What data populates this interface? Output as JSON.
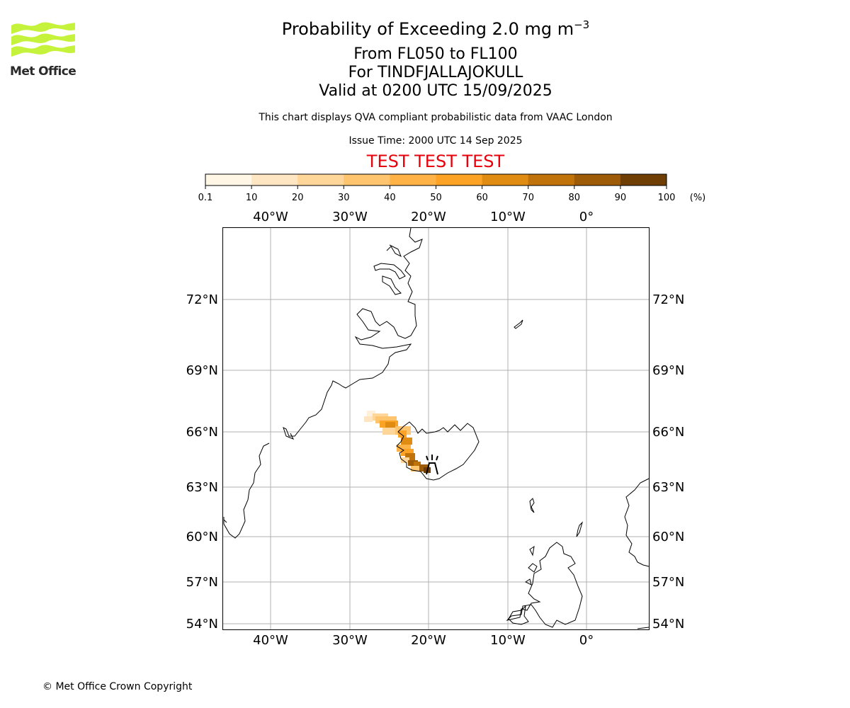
{
  "logo": {
    "name": "Met Office",
    "color": "#c5f23a"
  },
  "header": {
    "title_main": "Probability of Exceeding 2.0 mg m",
    "title_exp": "−3",
    "line2": "From FL050 to FL100",
    "line3": "For TINDFJALLAJOKULL",
    "line4": "Valid at 0200 UTC 15/09/2025",
    "description": "This chart displays QVA compliant probabilistic data from VAAC London",
    "issue_time": "Issue Time: 2000 UTC 14 Sep 2025",
    "test_banner": "TEST TEST TEST"
  },
  "colorbar": {
    "ticks": [
      "0.1",
      "10",
      "20",
      "30",
      "40",
      "50",
      "60",
      "70",
      "80",
      "90",
      "100"
    ],
    "unit": "(%)",
    "colors": [
      "#fff6e6",
      "#ffe6c2",
      "#ffd699",
      "#ffc46e",
      "#ffb347",
      "#fca326",
      "#e08c12",
      "#c0720b",
      "#9d5a07",
      "#6e3e05"
    ]
  },
  "map": {
    "lon_labels": [
      "40°W",
      "30°W",
      "20°W",
      "10°W",
      "0°"
    ],
    "lat_labels": [
      "72°N",
      "69°N",
      "66°N",
      "63°N",
      "60°N",
      "57°N",
      "54°N"
    ],
    "volcano": "TINDFJALLAJOKULL"
  },
  "footer": {
    "copyright": "© Met Office Crown Copyright"
  }
}
